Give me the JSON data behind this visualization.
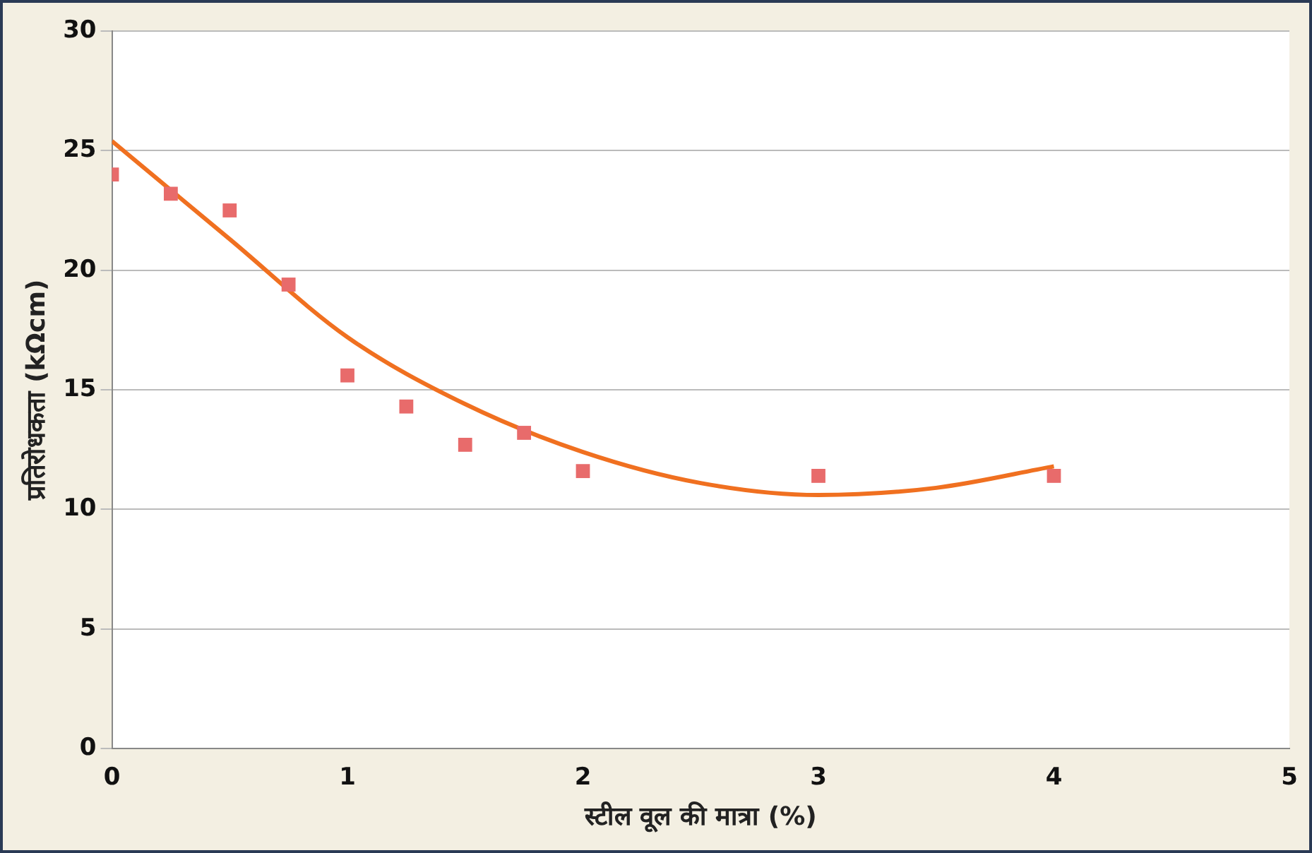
{
  "chart_data": {
    "type": "scatter",
    "xlabel": "स्टील वूल की मात्रा (%)",
    "ylabel": "प्रतिरोधकता (kΩcm)",
    "series": [
      {
        "type": "scatter",
        "color": "#e86b6b",
        "marker": "square",
        "x": [
          0,
          0.25,
          0.5,
          0.75,
          1,
          1.25,
          1.5,
          1.75,
          2,
          3,
          4
        ],
        "values": [
          24.0,
          23.2,
          22.5,
          19.4,
          15.6,
          14.3,
          12.7,
          13.2,
          11.6,
          11.4,
          11.4
        ]
      },
      {
        "type": "line",
        "color": "#f07020",
        "marker": "none",
        "line_style": "solid",
        "x": [
          0,
          0.5,
          1,
          1.5,
          2,
          2.5,
          3,
          3.5,
          4
        ],
        "values": [
          25.4,
          21.3,
          17.2,
          14.4,
          12.4,
          11.1,
          10.6,
          10.9,
          11.8
        ]
      }
    ],
    "xlim": [
      0,
      5
    ],
    "xticks": [
      0,
      1,
      2,
      3,
      4,
      5
    ],
    "ylim": [
      0,
      30
    ],
    "yticks": [
      0,
      5,
      10,
      15,
      20,
      25,
      30
    ],
    "grid": "y",
    "legend": false
  }
}
